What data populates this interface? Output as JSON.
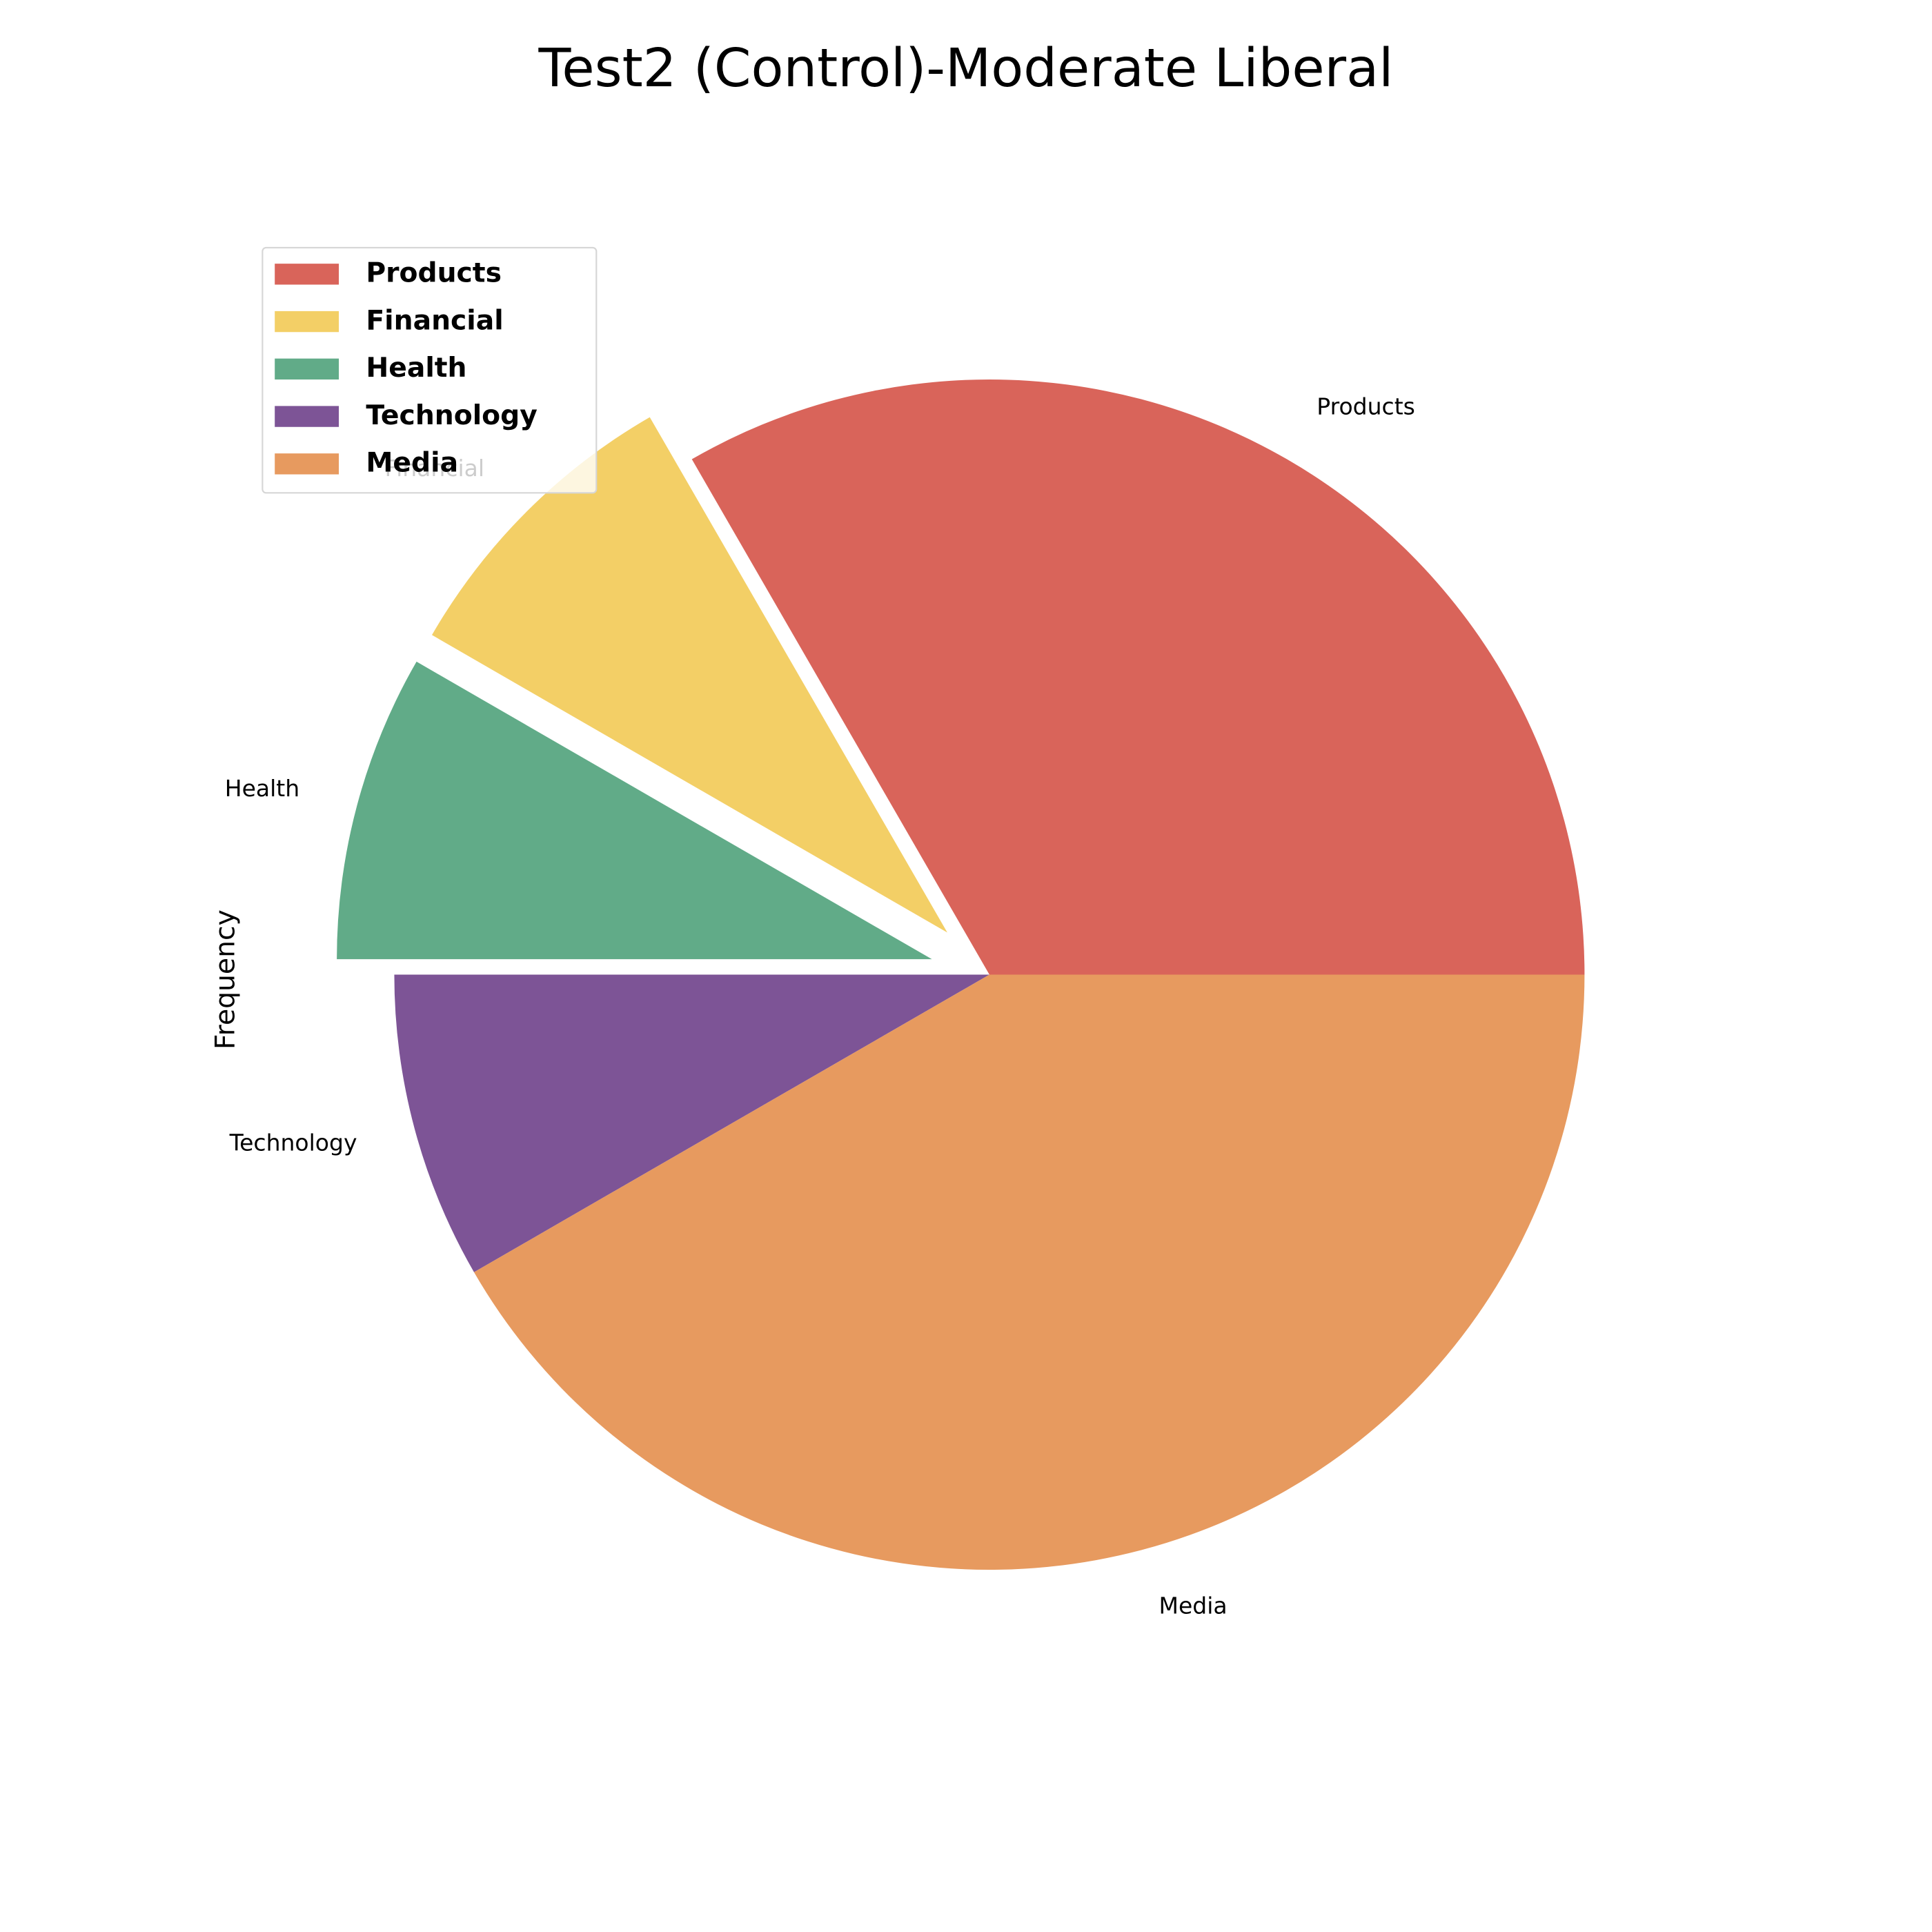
{
  "chart_data": {
    "type": "pie",
    "title": "Test2 (Control)-Moderate Liberal",
    "ylabel": "Frequency",
    "categories": [
      "Products",
      "Financial",
      "Health",
      "Technology",
      "Media"
    ],
    "values": [
      1,
      0.25,
      0.25,
      0.25,
      1.25
    ],
    "percentages": [
      33.3,
      8.3,
      8.3,
      8.3,
      41.7
    ],
    "exploded": [
      false,
      true,
      true,
      false,
      false
    ],
    "start_angle_deg": 0,
    "direction": "counterclockwise",
    "colors": [
      "#d9645a",
      "#f3cf66",
      "#61ab88",
      "#7d5496",
      "#e79a5f"
    ],
    "legend": {
      "entries": [
        "Products",
        "Financial",
        "Health",
        "Technology",
        "Media"
      ],
      "placement": "upper-left"
    }
  }
}
